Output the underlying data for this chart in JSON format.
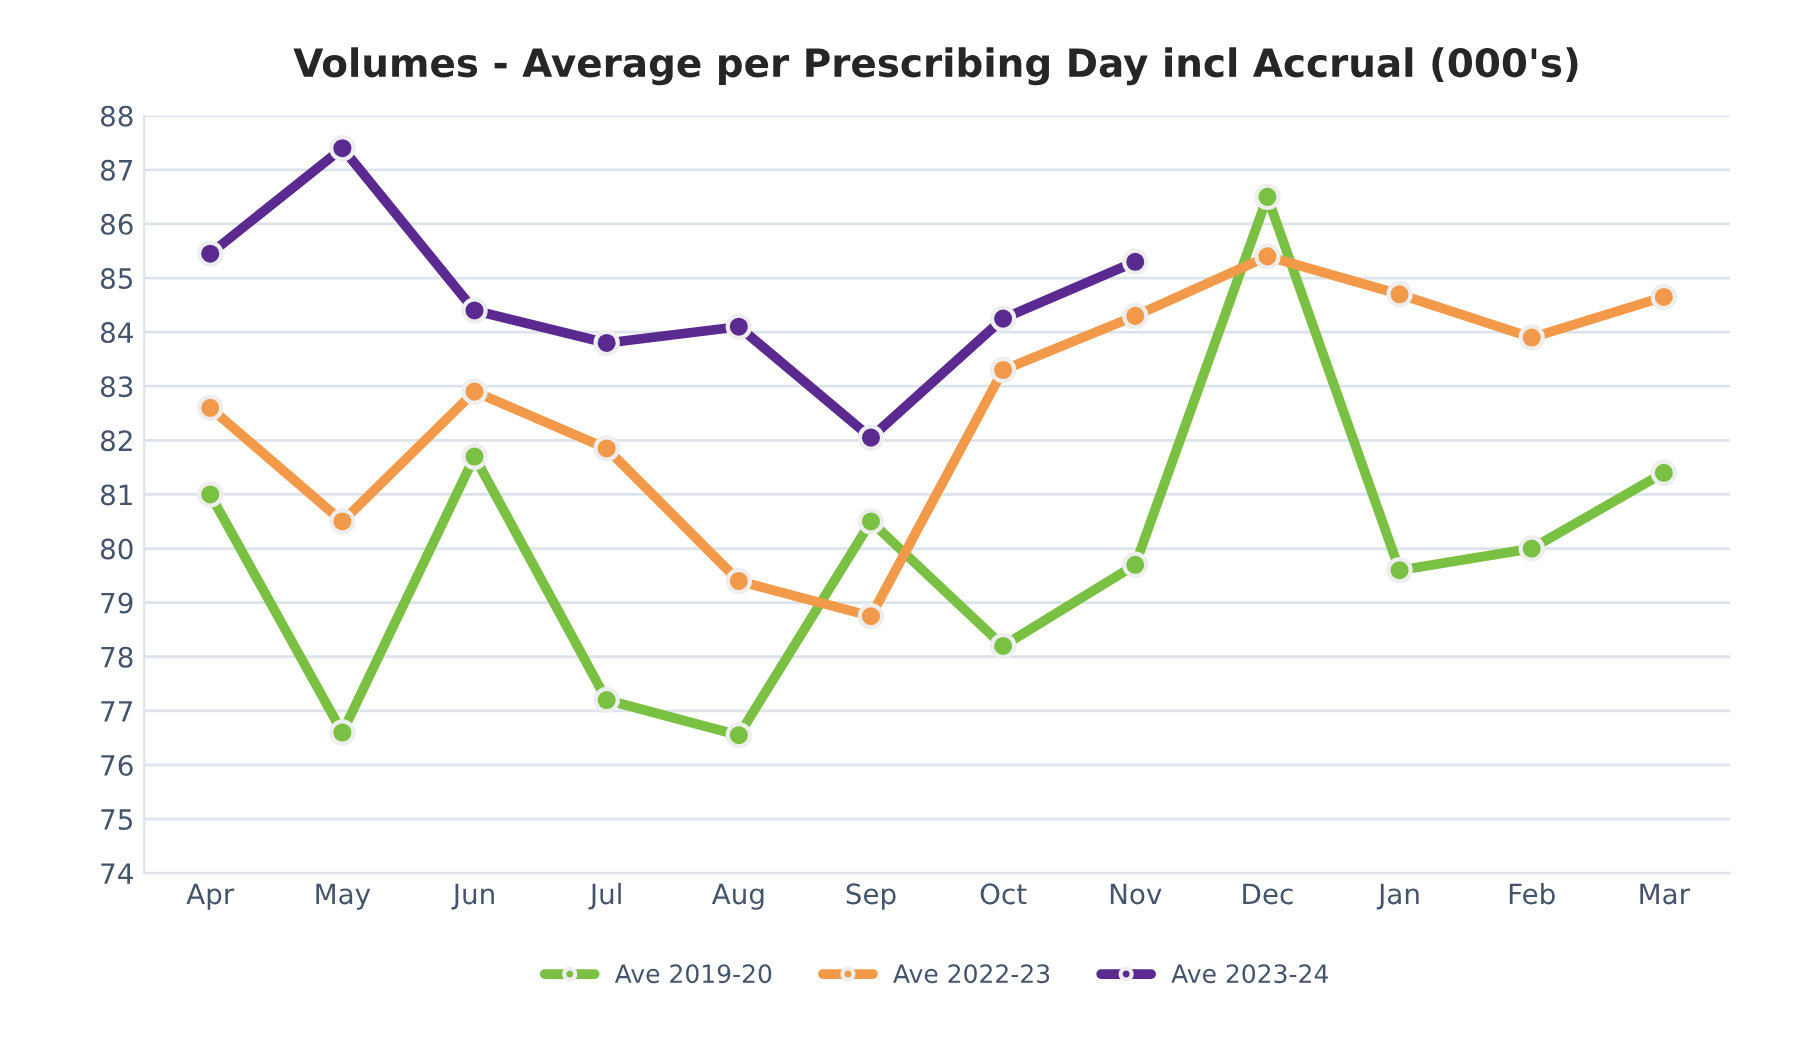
{
  "chart_data": {
    "type": "line",
    "title": "Volumes - Average per Prescribing Day incl Accrual (000's)",
    "categories": [
      "Apr",
      "May",
      "Jun",
      "Jul",
      "Aug",
      "Sep",
      "Oct",
      "Nov",
      "Dec",
      "Jan",
      "Feb",
      "Mar"
    ],
    "series": [
      {
        "name": "Ave 2019-20",
        "color": "#7ac143",
        "values": [
          81.0,
          76.6,
          81.7,
          77.2,
          76.55,
          80.5,
          78.2,
          79.7,
          86.5,
          79.6,
          80.0,
          81.4
        ]
      },
      {
        "name": "Ave 2022-23",
        "color": "#f39a4a",
        "values": [
          82.6,
          80.5,
          82.9,
          81.85,
          79.4,
          78.75,
          83.3,
          84.3,
          85.4,
          84.7,
          83.9,
          84.65
        ]
      },
      {
        "name": "Ave 2023-24",
        "color": "#5b2a91",
        "values": [
          85.45,
          87.4,
          84.4,
          83.8,
          84.1,
          82.05,
          84.25,
          85.3,
          null,
          null,
          null,
          null
        ]
      }
    ],
    "ylim": [
      74,
      88
    ],
    "yticks": [
      74,
      75,
      76,
      77,
      78,
      79,
      80,
      81,
      82,
      83,
      84,
      85,
      86,
      87,
      88
    ],
    "grid": "y",
    "legend": "bottom",
    "marker": "circle",
    "line_style": "solid"
  }
}
